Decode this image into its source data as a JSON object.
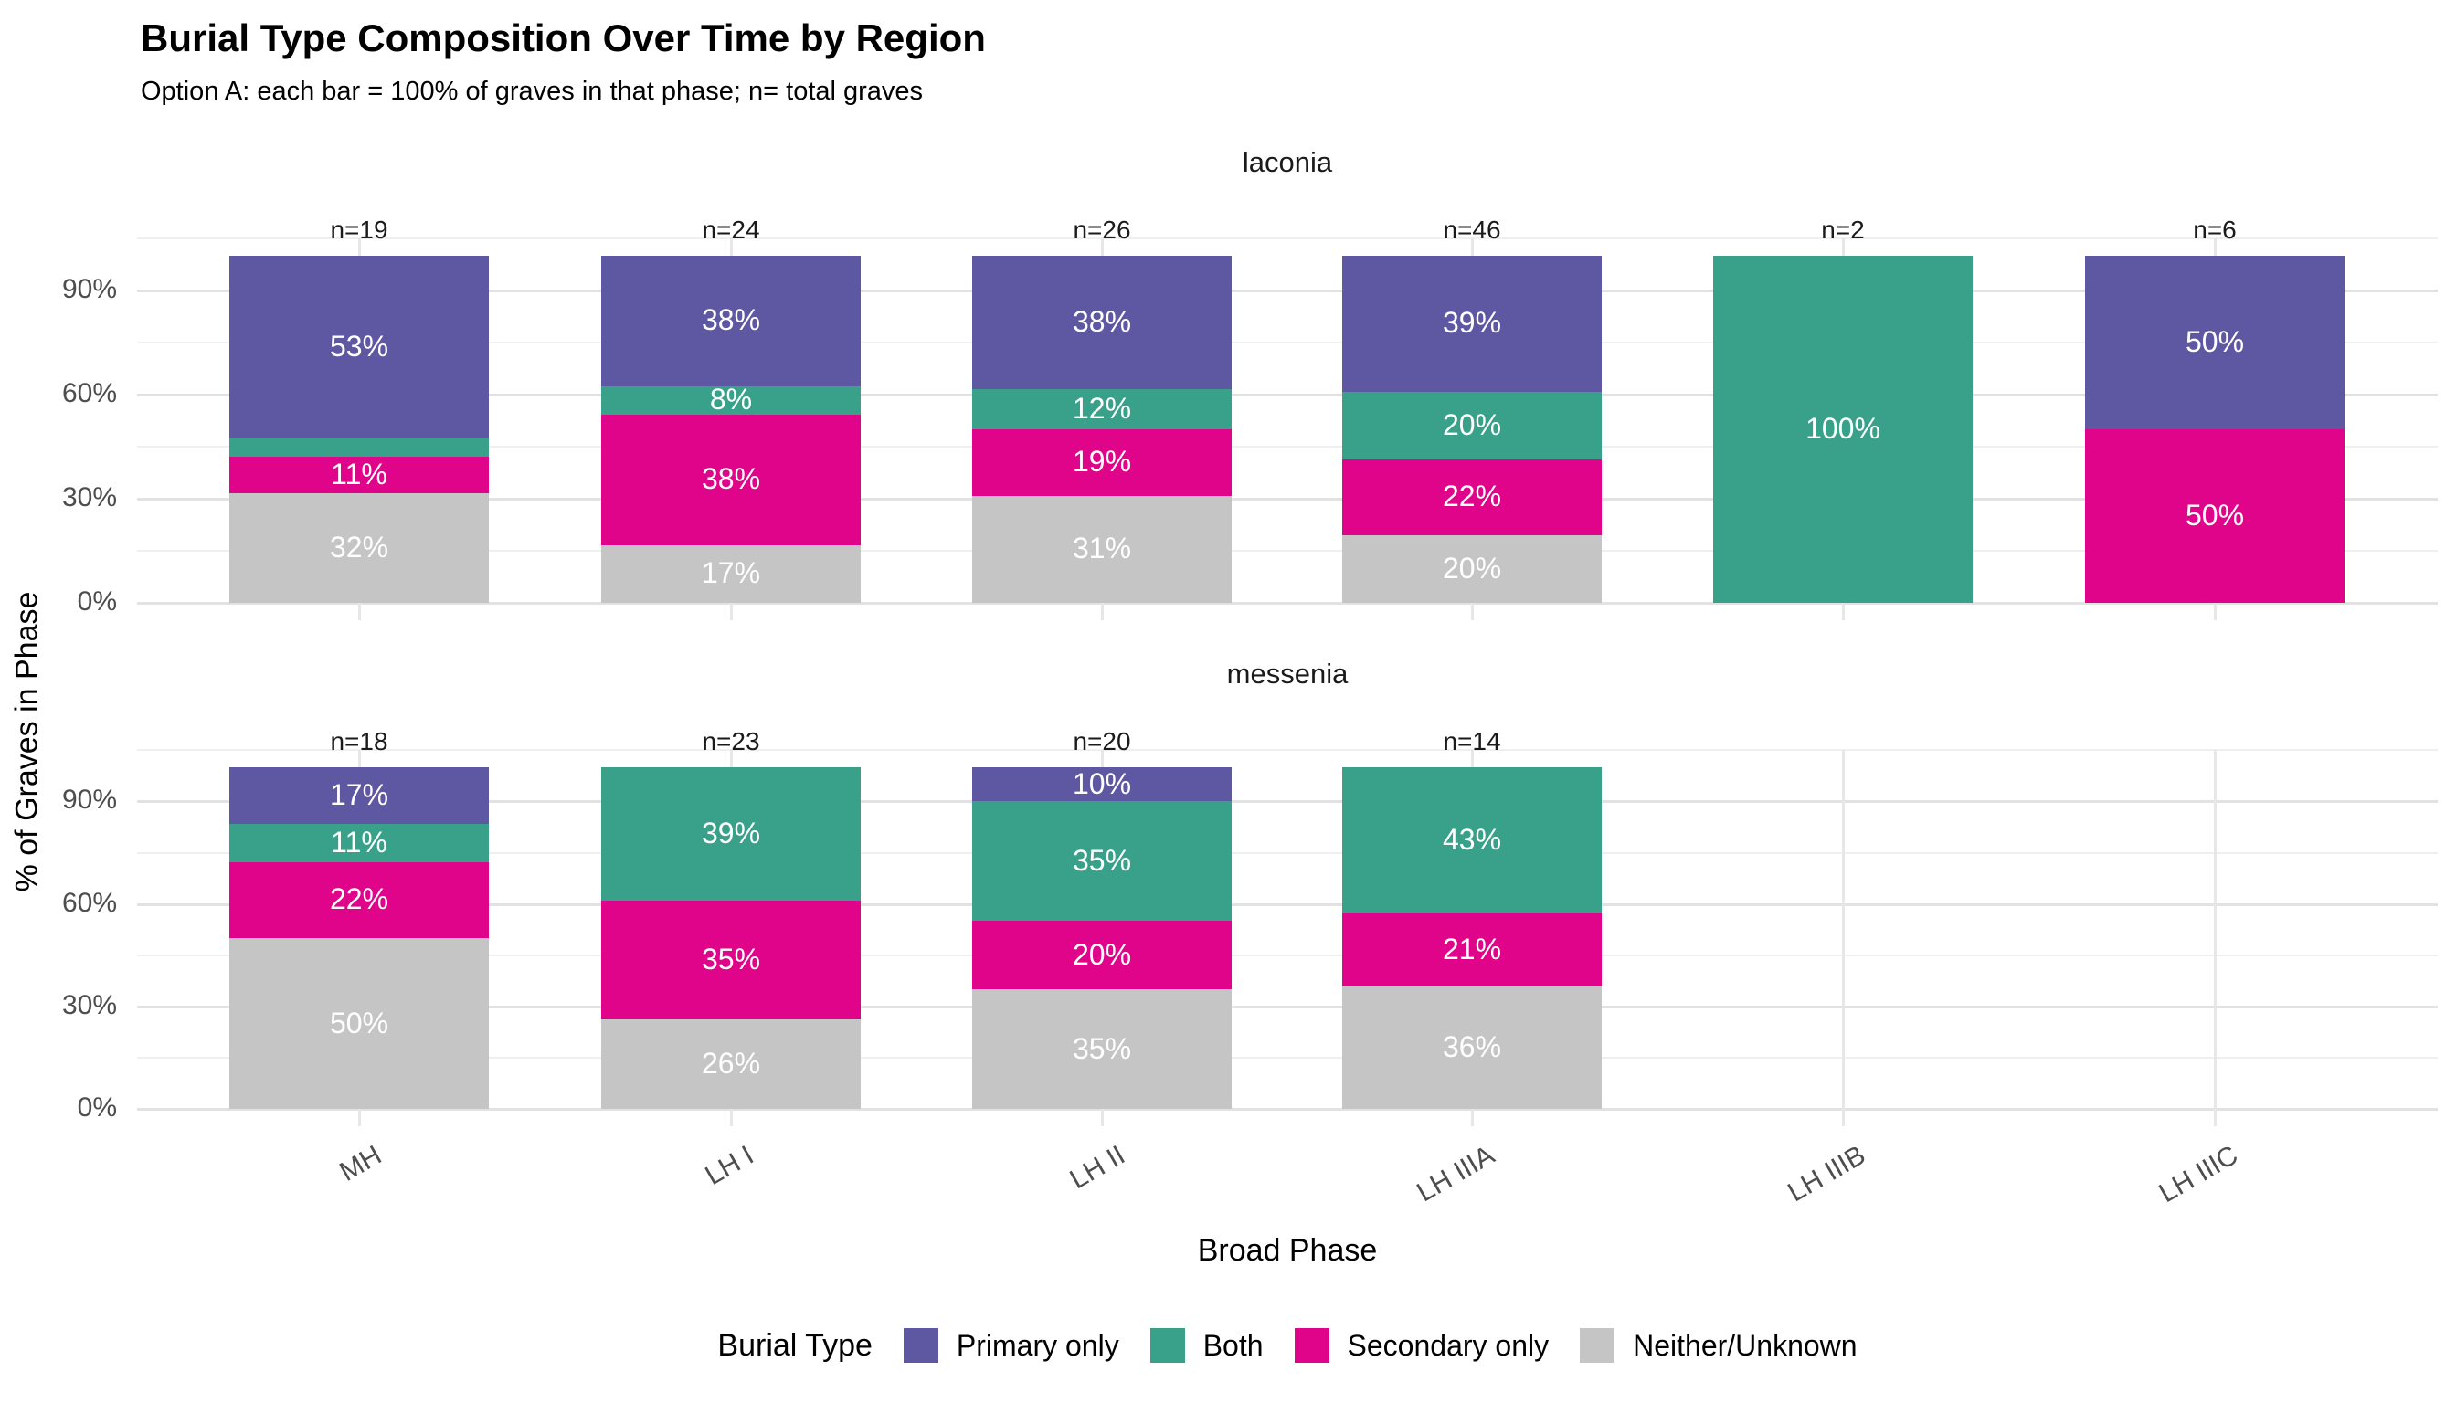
{
  "title": "Burial Type Composition Over Time by Region",
  "subtitle": "Option A: each bar = 100% of graves in that phase; n= total graves",
  "axes": {
    "x_title": "Broad Phase",
    "y_title": "% of Graves in Phase",
    "y_tick_labels": [
      "0%",
      "30%",
      "60%",
      "90%"
    ],
    "x_categories": [
      "MH",
      "LH I",
      "LH II",
      "LH IIIA",
      "LH IIIB",
      "LH IIIC"
    ]
  },
  "legend": {
    "title": "Burial Type",
    "items": [
      {
        "label": "Primary only",
        "color": "#5E57A1"
      },
      {
        "label": "Both",
        "color": "#39A18A"
      },
      {
        "label": "Secondary only",
        "color": "#E0048A"
      },
      {
        "label": "Neither/Unknown",
        "color": "#C5C5C5"
      }
    ]
  },
  "chart_data": {
    "type": "bar",
    "stacking": "percent",
    "title": "Burial Type Composition Over Time by Region",
    "subtitle": "Option A: each bar = 100% of graves in that phase; n= total graves",
    "xlabel": "Broad Phase",
    "ylabel": "% of Graves in Phase",
    "categories": [
      "MH",
      "LH I",
      "LH II",
      "LH IIIA",
      "LH IIIB",
      "LH IIIC"
    ],
    "series_order": [
      "Primary only",
      "Both",
      "Secondary only",
      "Neither/Unknown"
    ],
    "y_axis": {
      "major_ticks_pct": [
        0,
        30,
        60,
        90
      ],
      "minor_ticks_pct": [
        15,
        45,
        75,
        105
      ],
      "range_pct": [
        -5,
        105
      ],
      "grid": true
    },
    "legend_position": "bottom",
    "facets": [
      {
        "name": "laconia",
        "bars": [
          {
            "category": "MH",
            "n_label": "n=19",
            "segments": [
              {
                "series": "Primary only",
                "pct": 52.6,
                "label": "53%"
              },
              {
                "series": "Both",
                "pct": 5.3,
                "label": ""
              },
              {
                "series": "Secondary only",
                "pct": 10.5,
                "label": "11%"
              },
              {
                "series": "Neither/Unknown",
                "pct": 31.6,
                "label": "32%"
              }
            ]
          },
          {
            "category": "LH I",
            "n_label": "n=24",
            "segments": [
              {
                "series": "Primary only",
                "pct": 37.5,
                "label": "38%"
              },
              {
                "series": "Both",
                "pct": 8.3,
                "label": "8%"
              },
              {
                "series": "Secondary only",
                "pct": 37.5,
                "label": "38%"
              },
              {
                "series": "Neither/Unknown",
                "pct": 16.7,
                "label": "17%"
              }
            ]
          },
          {
            "category": "LH II",
            "n_label": "n=26",
            "segments": [
              {
                "series": "Primary only",
                "pct": 38.5,
                "label": "38%"
              },
              {
                "series": "Both",
                "pct": 11.5,
                "label": "12%"
              },
              {
                "series": "Secondary only",
                "pct": 19.2,
                "label": "19%"
              },
              {
                "series": "Neither/Unknown",
                "pct": 30.8,
                "label": "31%"
              }
            ]
          },
          {
            "category": "LH IIIA",
            "n_label": "n=46",
            "segments": [
              {
                "series": "Primary only",
                "pct": 39.1,
                "label": "39%"
              },
              {
                "series": "Both",
                "pct": 19.6,
                "label": "20%"
              },
              {
                "series": "Secondary only",
                "pct": 21.7,
                "label": "22%"
              },
              {
                "series": "Neither/Unknown",
                "pct": 19.6,
                "label": "20%"
              }
            ]
          },
          {
            "category": "LH IIIB",
            "n_label": "n=2",
            "segments": [
              {
                "series": "Both",
                "pct": 100,
                "label": "100%"
              }
            ]
          },
          {
            "category": "LH IIIC",
            "n_label": "n=6",
            "segments": [
              {
                "series": "Primary only",
                "pct": 50,
                "label": "50%"
              },
              {
                "series": "Secondary only",
                "pct": 50,
                "label": "50%"
              }
            ]
          }
        ]
      },
      {
        "name": "messenia",
        "bars": [
          {
            "category": "MH",
            "n_label": "n=18",
            "segments": [
              {
                "series": "Primary only",
                "pct": 16.7,
                "label": "17%"
              },
              {
                "series": "Both",
                "pct": 11.1,
                "label": "11%"
              },
              {
                "series": "Secondary only",
                "pct": 22.2,
                "label": "22%"
              },
              {
                "series": "Neither/Unknown",
                "pct": 50,
                "label": "50%"
              }
            ]
          },
          {
            "category": "LH I",
            "n_label": "n=23",
            "segments": [
              {
                "series": "Both",
                "pct": 39.1,
                "label": "39%"
              },
              {
                "series": "Secondary only",
                "pct": 34.8,
                "label": "35%"
              },
              {
                "series": "Neither/Unknown",
                "pct": 26.1,
                "label": "26%"
              }
            ]
          },
          {
            "category": "LH II",
            "n_label": "n=20",
            "segments": [
              {
                "series": "Primary only",
                "pct": 10,
                "label": "10%"
              },
              {
                "series": "Both",
                "pct": 35,
                "label": "35%"
              },
              {
                "series": "Secondary only",
                "pct": 20,
                "label": "20%"
              },
              {
                "series": "Neither/Unknown",
                "pct": 35,
                "label": "35%"
              }
            ]
          },
          {
            "category": "LH IIIA",
            "n_label": "n=14",
            "segments": [
              {
                "series": "Both",
                "pct": 42.9,
                "label": "43%"
              },
              {
                "series": "Secondary only",
                "pct": 21.4,
                "label": "21%"
              },
              {
                "series": "Neither/Unknown",
                "pct": 35.7,
                "label": "36%"
              }
            ]
          }
        ]
      }
    ]
  }
}
